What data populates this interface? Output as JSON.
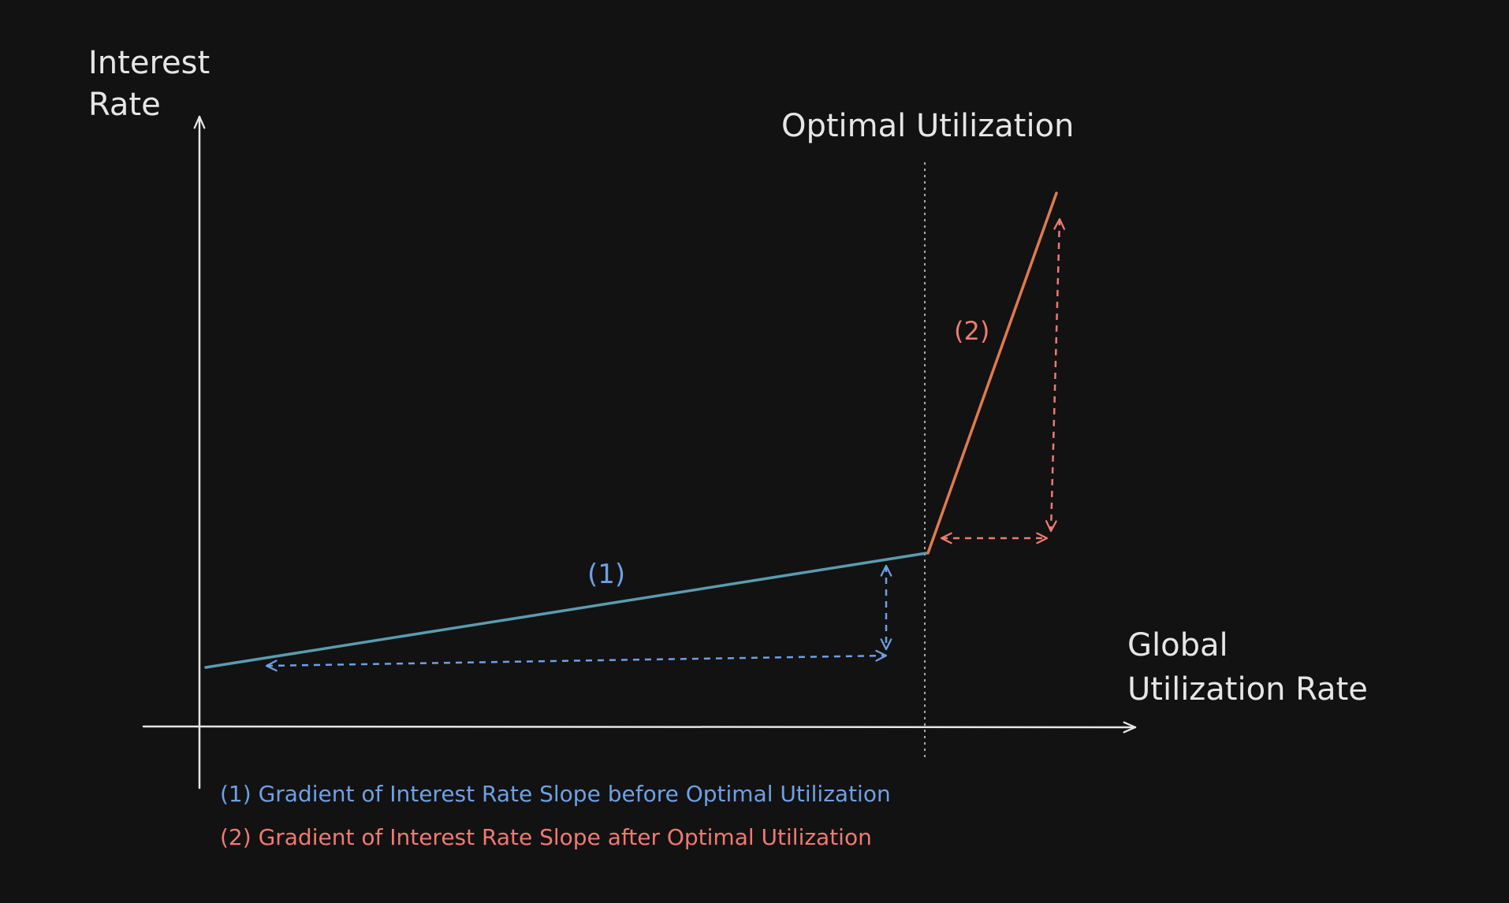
{
  "axes": {
    "y_label_line1": "Interest",
    "y_label_line2": "Rate",
    "x_label_line1": "Global",
    "x_label_line2": "Utilization Rate"
  },
  "markers": {
    "optimal_label": "Optimal Utilization"
  },
  "segments": {
    "before": {
      "tag": "(1)",
      "color": "#5b9bb0"
    },
    "after": {
      "tag": "(2)",
      "color": "#e07a4e"
    }
  },
  "arrows": {
    "before_color": "#6ea0e6",
    "after_color": "#f07a72"
  },
  "legend": {
    "item1": "(1) Gradient of Interest Rate Slope before Optimal Utilization",
    "item2": "(2) Gradient of Interest Rate Slope after Optimal Utilization"
  }
}
